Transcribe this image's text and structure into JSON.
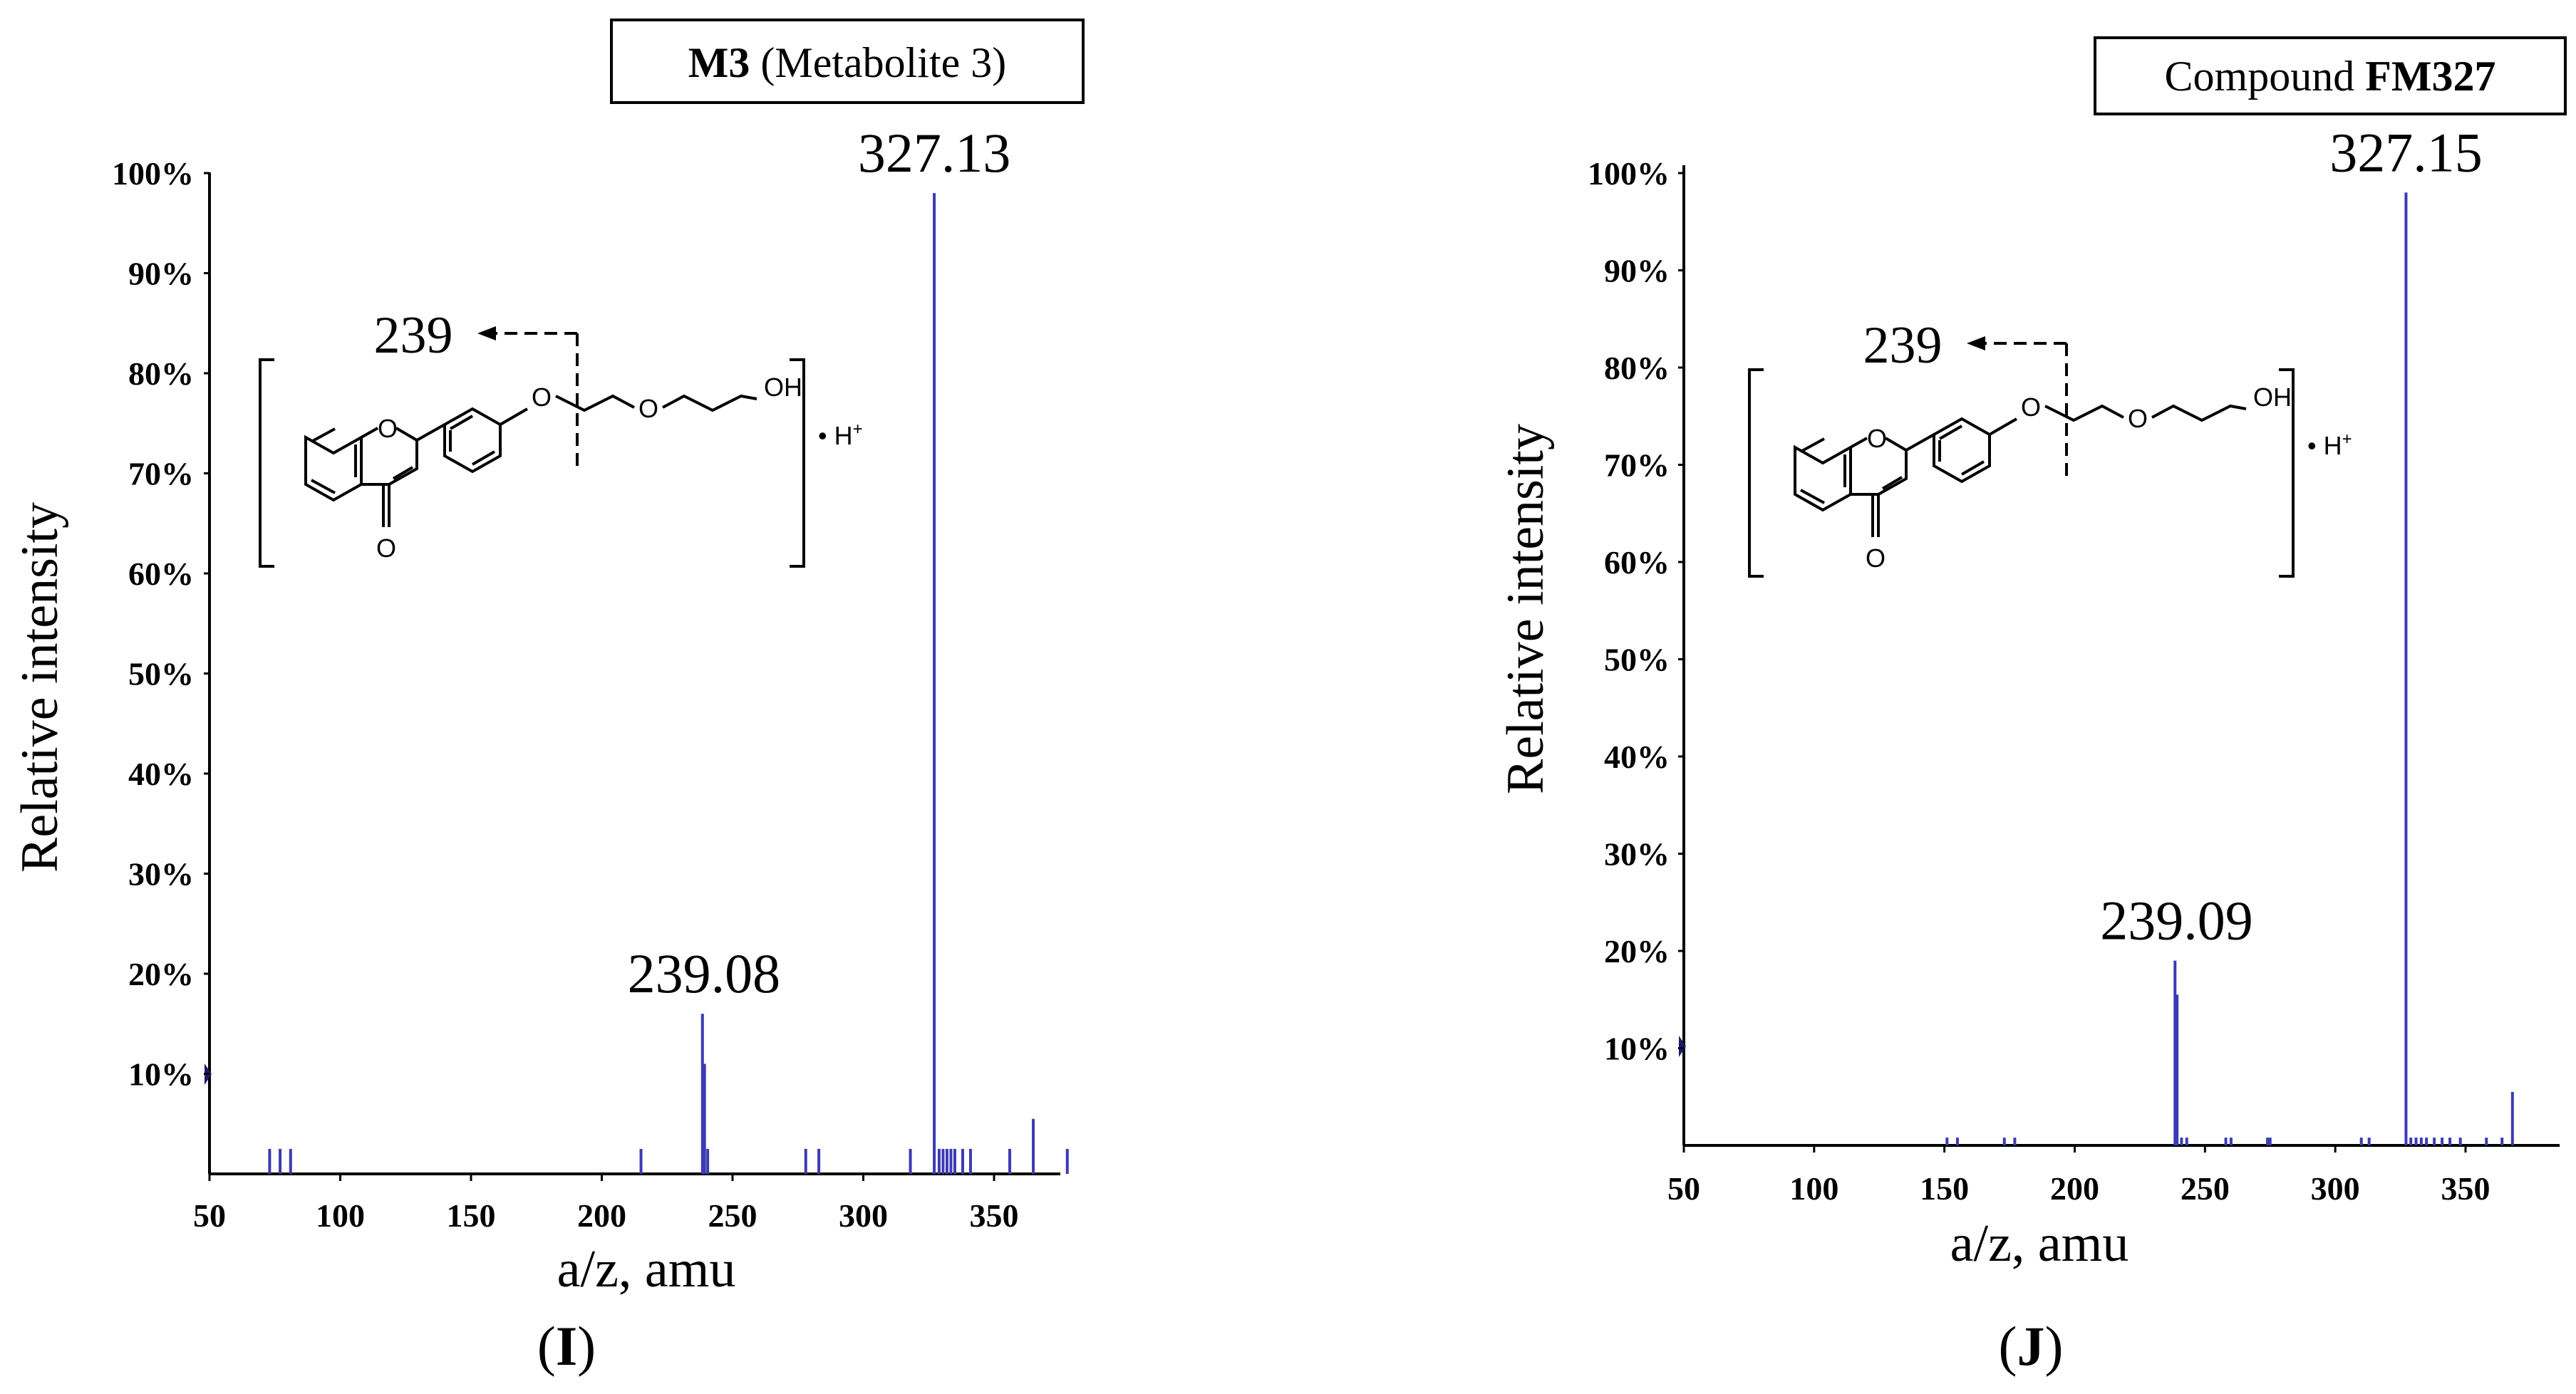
{
  "chart_data": [
    {
      "type": "bar",
      "panel_label": {
        "open": "(",
        "letter": "I",
        "close": ")"
      },
      "title": {
        "bold": "M3",
        "normal": " (Metabolite 3)"
      },
      "xlabel": "a/z, amu",
      "ylabel": "Relative intensity",
      "xlim": [
        50,
        380
      ],
      "ylim": [
        0,
        100
      ],
      "xticks": [
        "50",
        "100",
        "150",
        "200",
        "250",
        "300",
        "350"
      ],
      "yticks": [
        "10%",
        "20%",
        "30%",
        "40%",
        "50%",
        "60%",
        "70%",
        "80%",
        "90%",
        "100%"
      ],
      "peak_labels": [
        {
          "text": "327.13",
          "x": 327.13,
          "y": 98
        },
        {
          "text": "239.08",
          "x": 239.08,
          "y": 16
        }
      ],
      "peaks": [
        {
          "x": 73,
          "y": 2.5
        },
        {
          "x": 77,
          "y": 2.5
        },
        {
          "x": 81,
          "y": 2.5
        },
        {
          "x": 215,
          "y": 2.5
        },
        {
          "x": 238.5,
          "y": 16
        },
        {
          "x": 239.3,
          "y": 11
        },
        {
          "x": 240.5,
          "y": 2.5
        },
        {
          "x": 278,
          "y": 2.5
        },
        {
          "x": 283,
          "y": 2.5
        },
        {
          "x": 318,
          "y": 2.5
        },
        {
          "x": 327.13,
          "y": 98
        },
        {
          "x": 329,
          "y": 2.5
        },
        {
          "x": 330.5,
          "y": 2.5
        },
        {
          "x": 332,
          "y": 2.5
        },
        {
          "x": 333.5,
          "y": 2.5
        },
        {
          "x": 335,
          "y": 2.5
        },
        {
          "x": 338,
          "y": 2.5
        },
        {
          "x": 341,
          "y": 2.5
        },
        {
          "x": 356,
          "y": 2.5
        },
        {
          "x": 365,
          "y": 5.5
        },
        {
          "x": 378,
          "y": 2.5
        }
      ],
      "structure": {
        "fragment": "239",
        "oh": "OH",
        "ether_o": "O",
        "ring_o": "O",
        "ketone_o": "O",
        "charge": "• H",
        "plus": "+"
      }
    },
    {
      "type": "bar",
      "panel_label": {
        "open": "(",
        "letter": "J",
        "close": ")"
      },
      "title": {
        "normal": "Compound ",
        "bold": "FM327"
      },
      "xlabel": "a/z, amu",
      "ylabel": "Relative intensity",
      "xlim": [
        50,
        382
      ],
      "ylim": [
        0,
        100
      ],
      "xticks": [
        "50",
        "100",
        "150",
        "200",
        "250",
        "300",
        "350"
      ],
      "yticks": [
        "10%",
        "20%",
        "30%",
        "40%",
        "50%",
        "60%",
        "70%",
        "80%",
        "90%",
        "100%"
      ],
      "peak_labels": [
        {
          "text": "327.15",
          "x": 327.15,
          "y": 98
        },
        {
          "text": "239.09",
          "x": 239.09,
          "y": 19
        }
      ],
      "peaks": [
        {
          "x": 151,
          "y": 0.8
        },
        {
          "x": 155,
          "y": 0.8
        },
        {
          "x": 173,
          "y": 0.8
        },
        {
          "x": 177,
          "y": 0.8
        },
        {
          "x": 238.5,
          "y": 19
        },
        {
          "x": 239.3,
          "y": 15.5
        },
        {
          "x": 241,
          "y": 0.8
        },
        {
          "x": 243,
          "y": 0.8
        },
        {
          "x": 258,
          "y": 0.8
        },
        {
          "x": 260,
          "y": 0.8
        },
        {
          "x": 274,
          "y": 0.8
        },
        {
          "x": 275,
          "y": 0.8
        },
        {
          "x": 310,
          "y": 0.8
        },
        {
          "x": 313,
          "y": 0.8
        },
        {
          "x": 327.15,
          "y": 98
        },
        {
          "x": 329,
          "y": 0.8
        },
        {
          "x": 331,
          "y": 0.8
        },
        {
          "x": 333,
          "y": 0.8
        },
        {
          "x": 335,
          "y": 0.8
        },
        {
          "x": 338,
          "y": 0.8
        },
        {
          "x": 341,
          "y": 0.8
        },
        {
          "x": 344,
          "y": 0.8
        },
        {
          "x": 348,
          "y": 0.8
        },
        {
          "x": 358,
          "y": 0.8
        },
        {
          "x": 364,
          "y": 0.8
        },
        {
          "x": 368,
          "y": 5.5
        }
      ],
      "structure": {
        "fragment": "239",
        "oh": "OH",
        "ether_o": "O",
        "ring_o": "O",
        "ketone_o": "O",
        "charge": "• H",
        "plus": "+"
      }
    }
  ]
}
